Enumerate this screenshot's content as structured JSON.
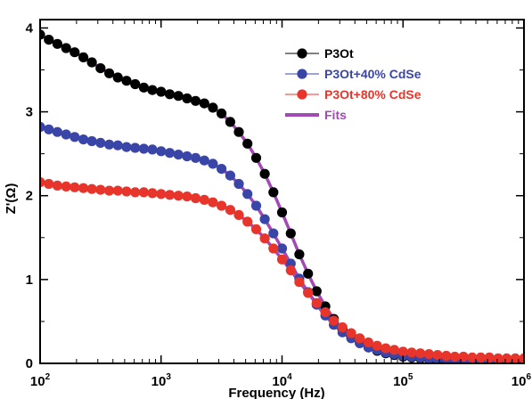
{
  "chart_data": {
    "type": "scatter",
    "xlabel": "Frequency (Hz)",
    "ylabel": "Z'(Ω)",
    "xscale": "log",
    "xlim": [
      100,
      1000000
    ],
    "ylim": [
      0,
      4.1
    ],
    "x_ticks": [
      {
        "value": 100,
        "base": "10",
        "exp": "2"
      },
      {
        "value": 1000,
        "base": "10",
        "exp": "3"
      },
      {
        "value": 10000,
        "base": "10",
        "exp": "4"
      },
      {
        "value": 100000,
        "base": "10",
        "exp": "5"
      },
      {
        "value": 1000000,
        "base": "10",
        "exp": "6"
      }
    ],
    "y_ticks": [
      {
        "value": 0,
        "label": "0"
      },
      {
        "value": 1,
        "label": "1"
      },
      {
        "value": 2,
        "label": "2"
      },
      {
        "value": 3,
        "label": "3"
      },
      {
        "value": 4,
        "label": "4"
      }
    ],
    "legend_position": "top-right",
    "series": [
      {
        "name": "P3Ot",
        "color": "#000000",
        "style": "markers",
        "x": [
          100,
          118,
          139,
          164,
          193,
          228,
          268,
          316,
          373,
          439,
          518,
          611,
          720,
          848,
          1000,
          1180,
          1390,
          1640,
          1930,
          2280,
          2680,
          3160,
          3730,
          4390,
          5180,
          6110,
          7200,
          8480,
          10000,
          11800,
          13900,
          16400,
          19300,
          22800,
          26800,
          31600,
          37300,
          43900,
          51800,
          61100,
          72000,
          84800,
          100000,
          118000,
          139000,
          164000,
          193000,
          228000,
          268000,
          316000,
          373000,
          439000,
          518000,
          611000,
          720000,
          848000,
          1000000
        ],
        "y": [
          3.92,
          3.86,
          3.81,
          3.76,
          3.71,
          3.65,
          3.59,
          3.52,
          3.46,
          3.41,
          3.37,
          3.33,
          3.29,
          3.26,
          3.24,
          3.21,
          3.19,
          3.16,
          3.13,
          3.1,
          3.05,
          2.98,
          2.88,
          2.76,
          2.62,
          2.45,
          2.26,
          2.04,
          1.8,
          1.55,
          1.3,
          1.07,
          0.86,
          0.68,
          0.53,
          0.41,
          0.32,
          0.25,
          0.19,
          0.15,
          0.12,
          0.1,
          0.08,
          0.07,
          0.06,
          0.05,
          0.04,
          0.04,
          0.03,
          0.03,
          0.02,
          0.02,
          0.02,
          0.01,
          0.01,
          0.01,
          0.01
        ]
      },
      {
        "name": "P3Ot+40% CdSe",
        "color": "#3a45a8",
        "style": "markers",
        "x": [
          100,
          118,
          139,
          164,
          193,
          228,
          268,
          316,
          373,
          439,
          518,
          611,
          720,
          848,
          1000,
          1180,
          1390,
          1640,
          1930,
          2280,
          2680,
          3160,
          3730,
          4390,
          5180,
          6110,
          7200,
          8480,
          10000,
          11800,
          13900,
          16400,
          19300,
          22800,
          26800,
          31600,
          37300,
          43900,
          51800,
          61100,
          72000,
          84800,
          100000,
          118000,
          139000,
          164000,
          193000,
          228000,
          268000,
          316000,
          373000,
          439000,
          518000,
          611000,
          720000,
          848000,
          1000000
        ],
        "y": [
          2.82,
          2.79,
          2.76,
          2.73,
          2.7,
          2.67,
          2.65,
          2.63,
          2.61,
          2.6,
          2.58,
          2.57,
          2.56,
          2.55,
          2.53,
          2.51,
          2.49,
          2.47,
          2.45,
          2.42,
          2.38,
          2.32,
          2.24,
          2.14,
          2.02,
          1.88,
          1.72,
          1.55,
          1.37,
          1.19,
          1.01,
          0.85,
          0.7,
          0.57,
          0.46,
          0.37,
          0.3,
          0.24,
          0.19,
          0.16,
          0.13,
          0.11,
          0.09,
          0.08,
          0.07,
          0.06,
          0.05,
          0.05,
          0.04,
          0.04,
          0.03,
          0.03,
          0.03,
          0.03,
          0.02,
          0.02,
          0.02
        ]
      },
      {
        "name": "P3Ot+80% CdSe",
        "color": "#e8352b",
        "style": "markers",
        "x": [
          100,
          118,
          139,
          164,
          193,
          228,
          268,
          316,
          373,
          439,
          518,
          611,
          720,
          848,
          1000,
          1180,
          1390,
          1640,
          1930,
          2280,
          2680,
          3160,
          3730,
          4390,
          5180,
          6110,
          7200,
          8480,
          10000,
          11800,
          13900,
          16400,
          19300,
          22800,
          26800,
          31600,
          37300,
          43900,
          51800,
          61100,
          72000,
          84800,
          100000,
          118000,
          139000,
          164000,
          193000,
          228000,
          268000,
          316000,
          373000,
          439000,
          518000,
          611000,
          720000,
          848000,
          1000000
        ],
        "y": [
          2.16,
          2.14,
          2.12,
          2.11,
          2.1,
          2.09,
          2.08,
          2.07,
          2.06,
          2.06,
          2.05,
          2.04,
          2.04,
          2.03,
          2.02,
          2.01,
          2.0,
          1.99,
          1.97,
          1.95,
          1.92,
          1.88,
          1.83,
          1.77,
          1.69,
          1.6,
          1.49,
          1.37,
          1.24,
          1.11,
          0.97,
          0.84,
          0.72,
          0.61,
          0.51,
          0.43,
          0.36,
          0.3,
          0.25,
          0.21,
          0.18,
          0.16,
          0.14,
          0.13,
          0.12,
          0.11,
          0.1,
          0.09,
          0.08,
          0.08,
          0.07,
          0.07,
          0.07,
          0.06,
          0.06,
          0.06,
          0.06
        ]
      },
      {
        "name": "Fits",
        "color": "#a349b5",
        "style": "lines",
        "fit_of": [
          0,
          1,
          2
        ]
      }
    ]
  }
}
